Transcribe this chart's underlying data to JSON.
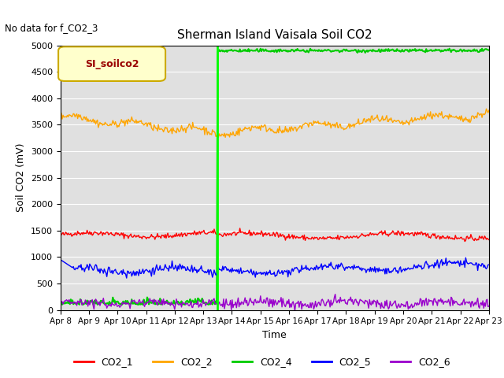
{
  "title": "Sherman Island Vaisala Soil CO2",
  "no_data_text": "No data for f_CO2_3",
  "ylabel": "Soil CO2 (mV)",
  "xlabel": "Time",
  "ylim": [
    0,
    5000
  ],
  "yticks": [
    0,
    500,
    1000,
    1500,
    2000,
    2500,
    3000,
    3500,
    4000,
    4500,
    5000
  ],
  "x_labels": [
    "Apr 8",
    "Apr 9",
    "Apr 10",
    "Apr 11",
    "Apr 12",
    "Apr 13",
    "Apr 14",
    "Apr 15",
    "Apr 16",
    "Apr 17",
    "Apr 18",
    "Apr 19",
    "Apr 20",
    "Apr 21",
    "Apr 22",
    "Apr 23"
  ],
  "vline_x": 5.5,
  "legend_label": "SI_soilco2",
  "background_color": "#e0e0e0",
  "colors": {
    "CO2_1": "#ff0000",
    "CO2_2": "#ffa500",
    "CO2_4": "#00cc00",
    "CO2_5": "#0000ff",
    "CO2_6": "#9900cc"
  },
  "series_labels": [
    "CO2_1",
    "CO2_2",
    "CO2_4",
    "CO2_5",
    "CO2_6"
  ],
  "n_points": 500
}
